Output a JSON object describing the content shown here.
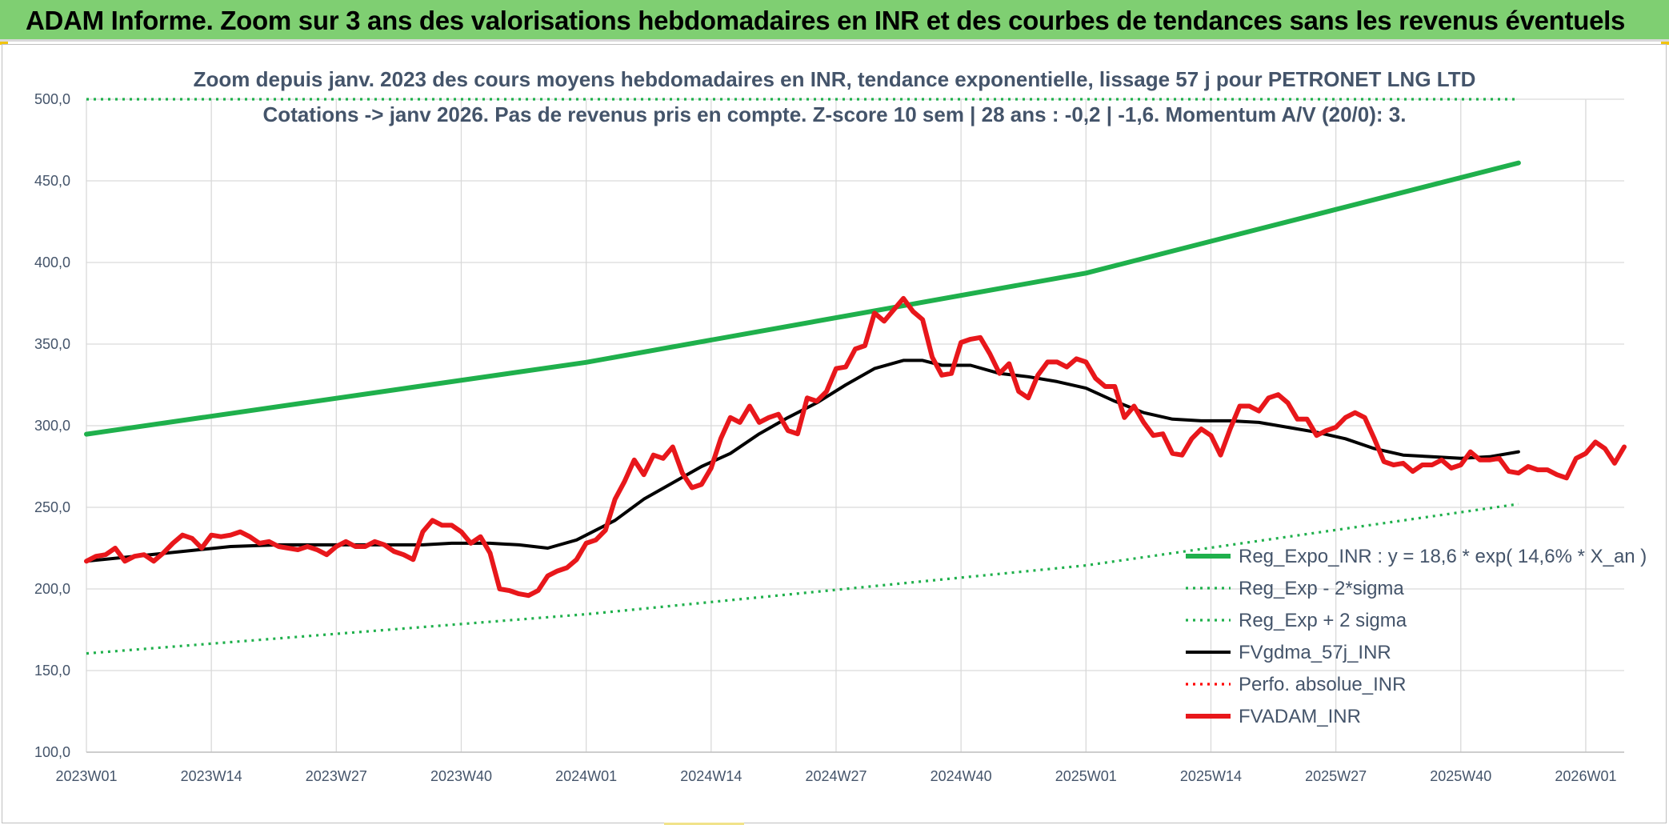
{
  "banner": {
    "title": "ADAM Informe. Zoom sur 3 ans des valorisations hebdomadaires en INR et des courbes de tendances sans les revenus éventuels",
    "color": "#7fcf72"
  },
  "chart_data": {
    "type": "line",
    "title": "Zoom depuis janv. 2023 des cours moyens hebdomadaires en INR, tendance exponentielle, lissage 57 j pour PETRONET LNG LTD",
    "subtitle": "Cotations -> janv 2026. Pas de revenus pris en compte. Z-score 10 sem | 28 ans : -0,2 | -1,6. Momentum A/V (20/0): 3.",
    "xlabel": "",
    "ylabel": "",
    "ylim": [
      100,
      500
    ],
    "yticks": [
      "100,0",
      "150,0",
      "200,0",
      "250,0",
      "300,0",
      "350,0",
      "400,0",
      "450,0",
      "500,0"
    ],
    "xticks": [
      "2023W01",
      "2023W14",
      "2023W27",
      "2023W40",
      "2024W01",
      "2024W14",
      "2024W27",
      "2024W40",
      "2025W01",
      "2025W14",
      "2025W27",
      "2025W40",
      "2026W01"
    ],
    "grid": true,
    "legend_position": "bottom-right",
    "series": [
      {
        "name": "Reg_Expo_INR : y = 18,6 * exp( 14,6% *  X_an )",
        "color": "#1fb04c",
        "style": "solid-thick",
        "points": [
          [
            0,
            294.8
          ],
          [
            52,
            338.8
          ],
          [
            104,
            393.5
          ],
          [
            149,
            461.0
          ]
        ]
      },
      {
        "name": "Reg_Exp - 2*sigma",
        "color": "#1fb04c",
        "style": "dotted",
        "points": [
          [
            0,
            160.5
          ],
          [
            52,
            184.5
          ],
          [
            104,
            214.4
          ],
          [
            149,
            252.0
          ]
        ]
      },
      {
        "name": "Reg_Exp + 2 sigma",
        "color": "#1fb04c",
        "style": "dotted",
        "points": [
          [
            0,
            500.0
          ],
          [
            149,
            500.0
          ]
        ]
      },
      {
        "name": "FVgdma_57j_INR",
        "color": "#000000",
        "style": "solid",
        "points": [
          [
            0,
            217
          ],
          [
            5,
            220
          ],
          [
            10,
            223
          ],
          [
            15,
            226
          ],
          [
            20,
            227
          ],
          [
            30,
            227
          ],
          [
            35,
            227
          ],
          [
            38,
            228
          ],
          [
            42,
            228
          ],
          [
            45,
            227
          ],
          [
            48,
            225
          ],
          [
            51,
            230
          ],
          [
            55,
            242
          ],
          [
            58,
            255
          ],
          [
            61,
            265
          ],
          [
            64,
            275
          ],
          [
            67,
            283
          ],
          [
            70,
            295
          ],
          [
            73,
            305
          ],
          [
            76,
            314
          ],
          [
            79,
            325
          ],
          [
            82,
            335
          ],
          [
            85,
            340
          ],
          [
            87,
            340
          ],
          [
            89,
            337
          ],
          [
            92,
            337
          ],
          [
            95,
            332
          ],
          [
            98,
            330
          ],
          [
            101,
            327
          ],
          [
            104,
            323
          ],
          [
            107,
            315
          ],
          [
            110,
            308
          ],
          [
            113,
            304
          ],
          [
            116,
            303
          ],
          [
            119,
            303
          ],
          [
            122,
            302
          ],
          [
            125,
            299
          ],
          [
            128,
            296
          ],
          [
            131,
            292
          ],
          [
            134,
            286
          ],
          [
            137,
            282
          ],
          [
            140,
            281
          ],
          [
            143,
            280
          ],
          [
            146,
            281
          ],
          [
            149,
            284
          ]
        ]
      },
      {
        "name": "Perfo. absolue_INR",
        "color": "#ff0000",
        "style": "dotted",
        "points": []
      },
      {
        "name": "FVADAM_INR",
        "color": "#e8171b",
        "style": "solid-thick",
        "points": [
          [
            0,
            217
          ],
          [
            1,
            220
          ],
          [
            2,
            221
          ],
          [
            3,
            225
          ],
          [
            4,
            217
          ],
          [
            5,
            220
          ],
          [
            6,
            221
          ],
          [
            7,
            217
          ],
          [
            8,
            222
          ],
          [
            9,
            228
          ],
          [
            10,
            233
          ],
          [
            11,
            231
          ],
          [
            12,
            225
          ],
          [
            13,
            233
          ],
          [
            14,
            232
          ],
          [
            15,
            233
          ],
          [
            16,
            235
          ],
          [
            17,
            232
          ],
          [
            18,
            228
          ],
          [
            19,
            229
          ],
          [
            20,
            226
          ],
          [
            21,
            225
          ],
          [
            22,
            224
          ],
          [
            23,
            226
          ],
          [
            24,
            224
          ],
          [
            25,
            221
          ],
          [
            26,
            226
          ],
          [
            27,
            229
          ],
          [
            28,
            226
          ],
          [
            29,
            226
          ],
          [
            30,
            229
          ],
          [
            31,
            227
          ],
          [
            32,
            223
          ],
          [
            33,
            221
          ],
          [
            34,
            218
          ],
          [
            35,
            235
          ],
          [
            36,
            242
          ],
          [
            37,
            239
          ],
          [
            38,
            239
          ],
          [
            39,
            235
          ],
          [
            40,
            228
          ],
          [
            41,
            232
          ],
          [
            42,
            222
          ],
          [
            43,
            200
          ],
          [
            44,
            199
          ],
          [
            45,
            197
          ],
          [
            46,
            196
          ],
          [
            47,
            199
          ],
          [
            48,
            208
          ],
          [
            49,
            211
          ],
          [
            50,
            213
          ],
          [
            51,
            218
          ],
          [
            52,
            228
          ],
          [
            53,
            230
          ],
          [
            54,
            236
          ],
          [
            55,
            255
          ],
          [
            56,
            266
          ],
          [
            57,
            279
          ],
          [
            58,
            270
          ],
          [
            59,
            282
          ],
          [
            60,
            280
          ],
          [
            61,
            287
          ],
          [
            62,
            271
          ],
          [
            63,
            262
          ],
          [
            64,
            264
          ],
          [
            65,
            274
          ],
          [
            66,
            292
          ],
          [
            67,
            305
          ],
          [
            68,
            302
          ],
          [
            69,
            312
          ],
          [
            70,
            302
          ],
          [
            71,
            305
          ],
          [
            72,
            307
          ],
          [
            73,
            297
          ],
          [
            74,
            295
          ],
          [
            75,
            317
          ],
          [
            76,
            315
          ],
          [
            77,
            321
          ],
          [
            78,
            335
          ],
          [
            79,
            336
          ],
          [
            80,
            347
          ],
          [
            81,
            349
          ],
          [
            82,
            369
          ],
          [
            83,
            364
          ],
          [
            84,
            371
          ],
          [
            85,
            378
          ],
          [
            86,
            370
          ],
          [
            87,
            365
          ],
          [
            88,
            342
          ],
          [
            89,
            331
          ],
          [
            90,
            332
          ],
          [
            91,
            351
          ],
          [
            92,
            353
          ],
          [
            93,
            354
          ],
          [
            94,
            344
          ],
          [
            95,
            332
          ],
          [
            96,
            338
          ],
          [
            97,
            321
          ],
          [
            98,
            317
          ],
          [
            99,
            331
          ],
          [
            100,
            339
          ],
          [
            101,
            339
          ],
          [
            102,
            336
          ],
          [
            103,
            341
          ],
          [
            104,
            339
          ],
          [
            105,
            329
          ],
          [
            106,
            324
          ],
          [
            107,
            324
          ],
          [
            108,
            305
          ],
          [
            109,
            312
          ],
          [
            110,
            302
          ],
          [
            111,
            294
          ],
          [
            112,
            295
          ],
          [
            113,
            283
          ],
          [
            114,
            282
          ],
          [
            115,
            292
          ],
          [
            116,
            298
          ],
          [
            117,
            294
          ],
          [
            118,
            282
          ],
          [
            119,
            298
          ],
          [
            120,
            312
          ],
          [
            121,
            312
          ],
          [
            122,
            309
          ],
          [
            123,
            317
          ],
          [
            124,
            319
          ],
          [
            125,
            314
          ],
          [
            126,
            304
          ],
          [
            127,
            304
          ],
          [
            128,
            294
          ],
          [
            129,
            297
          ],
          [
            130,
            299
          ],
          [
            131,
            305
          ],
          [
            132,
            308
          ],
          [
            133,
            305
          ],
          [
            134,
            292
          ],
          [
            135,
            278
          ],
          [
            136,
            276
          ],
          [
            137,
            277
          ],
          [
            138,
            272
          ],
          [
            139,
            276
          ],
          [
            140,
            276
          ],
          [
            141,
            279
          ],
          [
            142,
            274
          ],
          [
            143,
            276
          ],
          [
            144,
            284
          ],
          [
            145,
            279
          ],
          [
            146,
            279
          ],
          [
            147,
            280
          ],
          [
            148,
            272
          ],
          [
            149,
            271
          ],
          [
            150,
            275
          ],
          [
            151,
            273
          ],
          [
            152,
            273
          ],
          [
            153,
            270
          ],
          [
            154,
            268
          ],
          [
            155,
            280
          ],
          [
            156,
            283
          ],
          [
            157,
            290
          ],
          [
            158,
            286
          ],
          [
            159,
            277
          ],
          [
            160,
            287
          ]
        ]
      }
    ]
  }
}
